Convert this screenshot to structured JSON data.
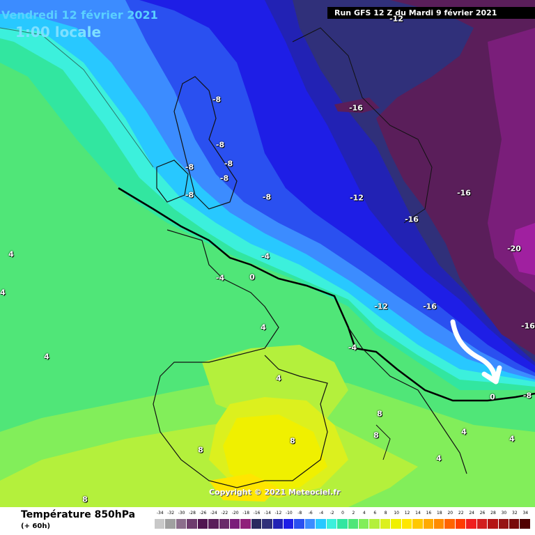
{
  "header": {
    "date": "Vendredi 12 février 2021",
    "time": "1:00 locale",
    "run": "Run GFS 12 Z du Mardi 9 février 2021"
  },
  "map_labels": [
    {
      "text": "-8"
    },
    {
      "text": "-8"
    },
    {
      "text": "-8"
    },
    {
      "text": "-8"
    },
    {
      "text": "-8"
    },
    {
      "text": "-8"
    },
    {
      "text": "-8"
    },
    {
      "text": "-12"
    },
    {
      "text": "-16"
    },
    {
      "text": "-16"
    },
    {
      "text": "-16"
    },
    {
      "text": "-20"
    },
    {
      "text": "-16"
    },
    {
      "text": "-12"
    },
    {
      "text": "-16"
    },
    {
      "text": "-4"
    },
    {
      "text": "-4"
    },
    {
      "text": "-4"
    },
    {
      "text": "0"
    },
    {
      "text": "0"
    },
    {
      "text": "4"
    },
    {
      "text": "4"
    },
    {
      "text": "4"
    },
    {
      "text": "4"
    },
    {
      "text": "4"
    },
    {
      "text": "4"
    },
    {
      "text": "8"
    },
    {
      "text": "8"
    },
    {
      "text": "8"
    },
    {
      "text": "8"
    },
    {
      "text": "8"
    },
    {
      "text": "4"
    },
    {
      "text": "4"
    },
    {
      "text": "-8"
    },
    {
      "text": "-12"
    }
  ],
  "copyright": "Copyright © 2021 Meteociel.fr",
  "footer": {
    "title": "Température 850hPa",
    "subtitle": "(+ 60h)"
  },
  "legend": {
    "ticks": [
      "-34",
      "-32",
      "-30",
      "-28",
      "-26",
      "-24",
      "-22",
      "-20",
      "-18",
      "-16",
      "-14",
      "-12",
      "-10",
      "-8",
      "-6",
      "-4",
      "-2",
      "0",
      "2",
      "4",
      "6",
      "8",
      "10",
      "12",
      "14",
      "16",
      "18",
      "20",
      "22",
      "24",
      "26",
      "28",
      "30",
      "32",
      "34"
    ],
    "colors": [
      "#c8c8c8",
      "#a0a0a0",
      "#8c6e8c",
      "#6e3c6e",
      "#501450",
      "#5a1e5a",
      "#6a2a6a",
      "#7a1e7a",
      "#90207a",
      "#2a2a5e",
      "#30307a",
      "#2222b4",
      "#1e1ee6",
      "#2a50f0",
      "#3c8cff",
      "#28c8ff",
      "#3cf0dc",
      "#32e6a0",
      "#50e678",
      "#82ee5a",
      "#b4f03c",
      "#dcf01e",
      "#f0f000",
      "#ffe600",
      "#ffc800",
      "#ffaa00",
      "#ff8c00",
      "#ff6400",
      "#ff3c00",
      "#f01e1e",
      "#d21e1e",
      "#b41414",
      "#961414",
      "#780a0a",
      "#500000"
    ]
  }
}
